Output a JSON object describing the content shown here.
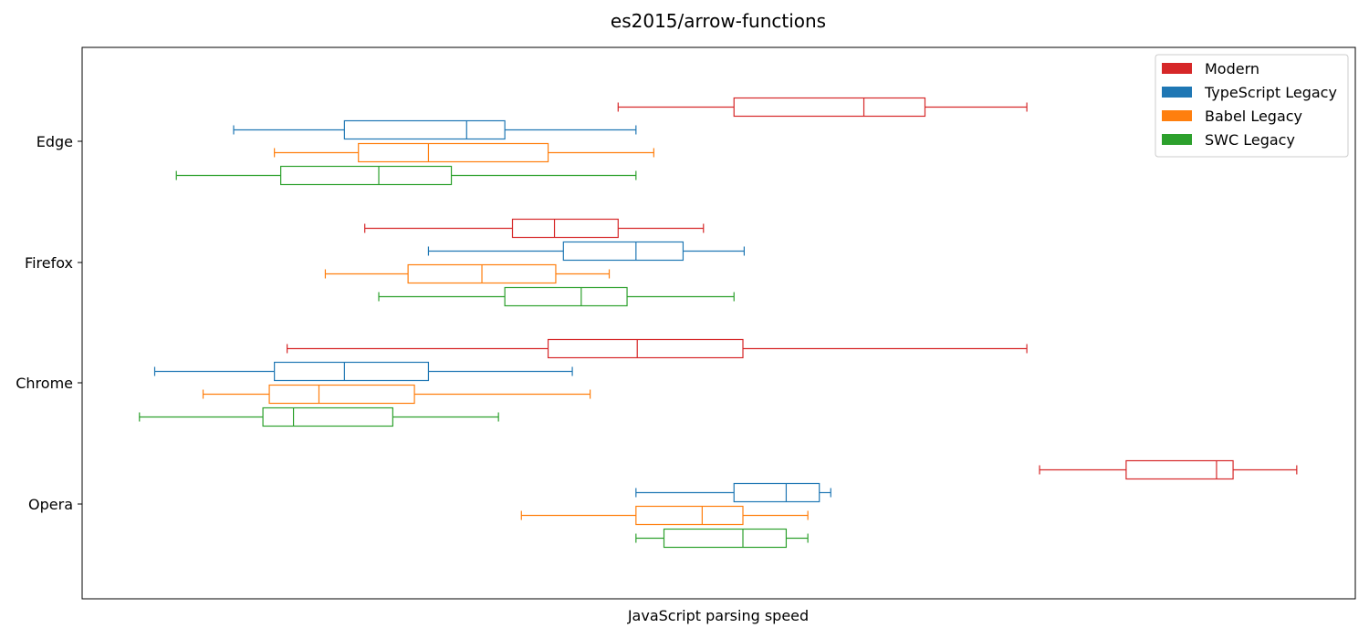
{
  "chart_data": {
    "type": "boxplot",
    "orientation": "horizontal",
    "title": "es2015/arrow-functions",
    "xlabel": "JavaScript parsing speed",
    "ylabel": "",
    "x_ticks_shown": false,
    "xlim": [
      0,
      1000
    ],
    "categories": [
      "Edge",
      "Firefox",
      "Chrome",
      "Opera"
    ],
    "legend": {
      "placement": "top-right"
    },
    "grid": false,
    "series": [
      {
        "name": "Modern",
        "color": "#d62728",
        "boxes": [
          {
            "category": "Edge",
            "min": 421,
            "q1": 512,
            "median": 614,
            "q3": 662,
            "max": 742
          },
          {
            "category": "Firefox",
            "min": 222,
            "q1": 338,
            "median": 371,
            "q3": 421,
            "max": 488
          },
          {
            "category": "Chrome",
            "min": 161,
            "q1": 366,
            "median": 436,
            "q3": 519,
            "max": 742
          },
          {
            "category": "Opera",
            "min": 752,
            "q1": 820,
            "median": 891,
            "q3": 904,
            "max": 954
          }
        ]
      },
      {
        "name": "TypeScript Legacy",
        "color": "#1f77b4",
        "boxes": [
          {
            "category": "Edge",
            "min": 119,
            "q1": 206,
            "median": 302,
            "q3": 332,
            "max": 435
          },
          {
            "category": "Firefox",
            "min": 272,
            "q1": 378,
            "median": 435,
            "q3": 472,
            "max": 520
          },
          {
            "category": "Chrome",
            "min": 57,
            "q1": 151,
            "median": 206,
            "q3": 272,
            "max": 385
          },
          {
            "category": "Opera",
            "min": 435,
            "q1": 512,
            "median": 553,
            "q3": 579,
            "max": 588
          }
        ]
      },
      {
        "name": "Babel Legacy",
        "color": "#ff7f0e",
        "boxes": [
          {
            "category": "Edge",
            "min": 151,
            "q1": 217,
            "median": 272,
            "q3": 366,
            "max": 449
          },
          {
            "category": "Firefox",
            "min": 191,
            "q1": 256,
            "median": 314,
            "q3": 372,
            "max": 414
          },
          {
            "category": "Chrome",
            "min": 95,
            "q1": 147,
            "median": 186,
            "q3": 261,
            "max": 399
          },
          {
            "category": "Opera",
            "min": 345,
            "q1": 435,
            "median": 487,
            "q3": 519,
            "max": 570
          }
        ]
      },
      {
        "name": "SWC Legacy",
        "color": "#2ca02c",
        "boxes": [
          {
            "category": "Edge",
            "min": 74,
            "q1": 156,
            "median": 233,
            "q3": 290,
            "max": 435
          },
          {
            "category": "Firefox",
            "min": 233,
            "q1": 332,
            "median": 392,
            "q3": 428,
            "max": 512
          },
          {
            "category": "Chrome",
            "min": 45,
            "q1": 142,
            "median": 166,
            "q3": 244,
            "max": 327
          },
          {
            "category": "Opera",
            "min": 435,
            "q1": 457,
            "median": 519,
            "q3": 553,
            "max": 570
          }
        ]
      }
    ]
  }
}
